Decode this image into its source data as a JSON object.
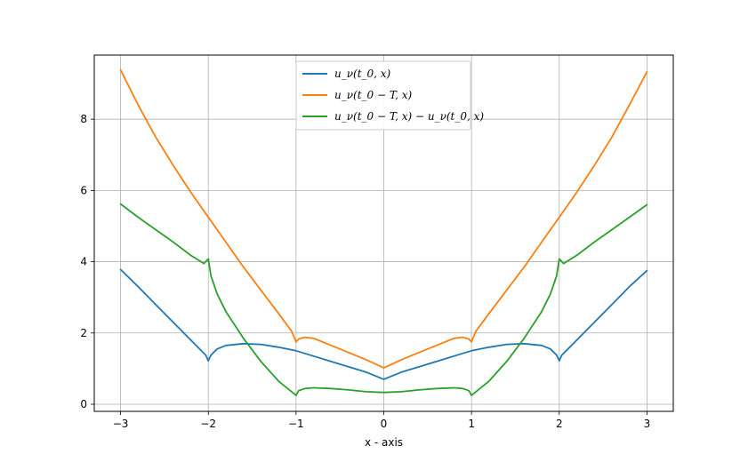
{
  "chart_data": {
    "type": "line",
    "title": "",
    "xlabel": "x - axis",
    "ylabel": "",
    "xlim": [
      -3.3,
      3.3
    ],
    "ylim": [
      -0.2,
      9.8
    ],
    "xticks": [
      -3,
      -2,
      -1,
      0,
      1,
      2,
      3
    ],
    "yticks": [
      0,
      2,
      4,
      6,
      8
    ],
    "grid": true,
    "legend_position": "upper-center",
    "series": [
      {
        "name": "u_ν(t_0, x)",
        "color": "#1f77b4",
        "x": [
          -3,
          -2.8,
          -2.6,
          -2.4,
          -2.2,
          -2.1,
          -2.03,
          -2,
          -1.97,
          -1.9,
          -1.8,
          -1.6,
          -1.4,
          -1.2,
          -1,
          -0.8,
          -0.6,
          -0.4,
          -0.2,
          0,
          0.2,
          0.4,
          0.6,
          0.8,
          1,
          1.2,
          1.4,
          1.6,
          1.8,
          1.9,
          1.97,
          2,
          2.03,
          2.1,
          2.2,
          2.4,
          2.6,
          2.8,
          3
        ],
        "y": [
          3.78,
          3.3,
          2.8,
          2.3,
          1.8,
          1.55,
          1.38,
          1.22,
          1.38,
          1.55,
          1.65,
          1.7,
          1.68,
          1.6,
          1.5,
          1.35,
          1.2,
          1.05,
          0.9,
          0.7,
          0.9,
          1.05,
          1.2,
          1.35,
          1.5,
          1.6,
          1.68,
          1.7,
          1.65,
          1.55,
          1.38,
          1.22,
          1.38,
          1.55,
          1.8,
          2.3,
          2.8,
          3.3,
          3.75
        ]
      },
      {
        "name": "u_ν(t_0 − T, x)",
        "color": "#ff7f0e",
        "x": [
          -3,
          -2.8,
          -2.6,
          -2.4,
          -2.2,
          -2,
          -1.8,
          -1.6,
          -1.4,
          -1.2,
          -1.05,
          -1,
          -0.97,
          -0.9,
          -0.8,
          -0.6,
          -0.4,
          -0.2,
          0,
          0.2,
          0.4,
          0.6,
          0.8,
          0.9,
          0.97,
          1,
          1.05,
          1.2,
          1.4,
          1.6,
          1.8,
          2,
          2.2,
          2.4,
          2.6,
          2.8,
          3
        ],
        "y": [
          9.38,
          8.4,
          7.5,
          6.7,
          5.95,
          5.25,
          4.55,
          3.85,
          3.2,
          2.55,
          2.05,
          1.75,
          1.83,
          1.88,
          1.85,
          1.65,
          1.45,
          1.25,
          1.02,
          1.25,
          1.45,
          1.65,
          1.85,
          1.88,
          1.83,
          1.75,
          2.05,
          2.55,
          3.2,
          3.85,
          4.55,
          5.25,
          5.95,
          6.7,
          7.5,
          8.4,
          9.33
        ]
      },
      {
        "name": "u_ν(t_0 − T, x) − u_ν(t_0, x)",
        "color": "#2ca02c",
        "x": [
          -3,
          -2.8,
          -2.6,
          -2.4,
          -2.2,
          -2.05,
          -2,
          -1.97,
          -1.9,
          -1.8,
          -1.6,
          -1.4,
          -1.2,
          -1.05,
          -1,
          -0.97,
          -0.9,
          -0.8,
          -0.6,
          -0.4,
          -0.2,
          0,
          0.2,
          0.4,
          0.6,
          0.8,
          0.9,
          0.97,
          1,
          1.05,
          1.2,
          1.4,
          1.6,
          1.8,
          1.9,
          1.97,
          2,
          2.05,
          2.2,
          2.4,
          2.6,
          2.8,
          3
        ],
        "y": [
          5.62,
          5.25,
          4.9,
          4.55,
          4.18,
          3.95,
          4.08,
          3.6,
          3.1,
          2.6,
          1.85,
          1.2,
          0.65,
          0.35,
          0.25,
          0.38,
          0.44,
          0.46,
          0.44,
          0.4,
          0.35,
          0.33,
          0.35,
          0.4,
          0.44,
          0.46,
          0.44,
          0.38,
          0.25,
          0.35,
          0.65,
          1.2,
          1.85,
          2.6,
          3.1,
          3.6,
          4.08,
          3.95,
          4.18,
          4.55,
          4.9,
          5.25,
          5.6
        ]
      }
    ]
  }
}
